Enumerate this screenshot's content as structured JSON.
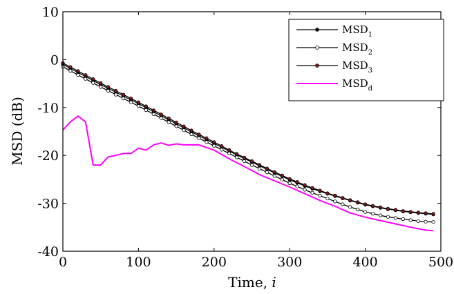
{
  "chart_data": {
    "type": "line",
    "title": "",
    "xlabel": "Time, ",
    "xlabel_var": "i",
    "ylabel": "MSD (dB)",
    "xlim": [
      0,
      500
    ],
    "ylim": [
      -40,
      10
    ],
    "x_ticks": [
      0,
      100,
      200,
      300,
      400,
      500
    ],
    "y_ticks": [
      -40,
      -30,
      -20,
      -10,
      0,
      10
    ],
    "x_tick_labels": [
      "0",
      "100",
      "200",
      "300",
      "400",
      "500"
    ],
    "y_tick_labels": [
      "-40",
      "-30",
      "-20",
      "-10",
      "0",
      "10"
    ],
    "grid": false,
    "legend_position": "top-right",
    "series": [
      {
        "name": "MSD",
        "sub": "1",
        "color": "#000000",
        "marker": "filled-circle",
        "x": [
          0,
          25,
          50,
          75,
          100,
          125,
          150,
          175,
          200,
          225,
          250,
          275,
          300,
          325,
          350,
          375,
          400,
          425,
          450,
          475,
          490
        ],
        "y": [
          -1.0,
          -3.1,
          -5.2,
          -7.2,
          -9.2,
          -11.3,
          -13.4,
          -15.5,
          -17.5,
          -19.5,
          -21.4,
          -23.3,
          -25.1,
          -26.7,
          -28.0,
          -29.2,
          -30.3,
          -31.1,
          -31.7,
          -32.1,
          -32.3
        ]
      },
      {
        "name": "MSD",
        "sub": "2",
        "color": "#000000",
        "marker": "open-circle",
        "x": [
          0,
          25,
          50,
          75,
          100,
          125,
          150,
          175,
          200,
          225,
          250,
          275,
          300,
          325,
          350,
          375,
          400,
          425,
          450,
          475,
          490
        ],
        "y": [
          -1.5,
          -3.6,
          -5.7,
          -7.7,
          -9.7,
          -11.8,
          -13.9,
          -16.0,
          -18.0,
          -20.0,
          -22.0,
          -23.9,
          -25.8,
          -27.5,
          -29.0,
          -30.5,
          -31.8,
          -32.7,
          -33.3,
          -33.8,
          -33.9
        ]
      },
      {
        "name": "MSD",
        "sub": "3",
        "color": "#000000",
        "marker": "red-circle",
        "x": [
          0,
          25,
          50,
          75,
          100,
          125,
          150,
          175,
          200,
          225,
          250,
          275,
          300,
          325,
          350,
          375,
          400,
          425,
          450,
          475,
          490
        ],
        "y": [
          -0.7,
          -2.8,
          -4.9,
          -6.9,
          -8.9,
          -11.0,
          -13.1,
          -15.2,
          -17.2,
          -19.3,
          -21.2,
          -23.1,
          -24.9,
          -26.5,
          -27.9,
          -29.1,
          -30.2,
          -31.0,
          -31.6,
          -32.0,
          -32.2
        ]
      },
      {
        "name": "MSD",
        "sub": "d",
        "color": "#ff00ff",
        "marker": "none",
        "x": [
          0,
          10,
          20,
          30,
          40,
          50,
          60,
          70,
          80,
          90,
          100,
          110,
          120,
          130,
          140,
          150,
          160,
          180,
          200,
          220,
          240,
          260,
          280,
          300,
          320,
          340,
          360,
          380,
          400,
          420,
          440,
          460,
          480,
          490
        ],
        "y": [
          -14.7,
          -13.0,
          -11.8,
          -13.0,
          -22.0,
          -22.0,
          -20.3,
          -20.0,
          -19.6,
          -19.6,
          -18.5,
          -18.9,
          -17.8,
          -17.4,
          -17.9,
          -17.6,
          -17.8,
          -17.8,
          -18.9,
          -20.7,
          -22.3,
          -24.0,
          -25.3,
          -26.6,
          -28.0,
          -29.4,
          -30.6,
          -32.0,
          -32.9,
          -33.6,
          -34.3,
          -35.0,
          -35.6,
          -35.7
        ]
      }
    ]
  }
}
